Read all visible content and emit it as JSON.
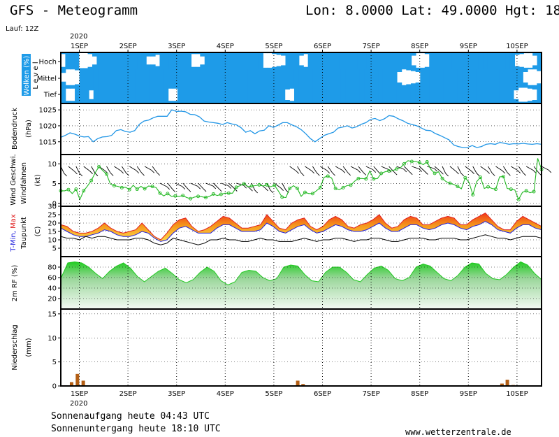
{
  "header": {
    "title": "GFS - Meteogramm",
    "coords": "Lon: 8.0000 Lat: 49.0000 Hgt: 18",
    "lauf": "Lauf: 12Z"
  },
  "axis": {
    "year_top": "2020",
    "year_bottom": "2020",
    "days": [
      "1SEP",
      "2SEP",
      "3SEP",
      "4SEP",
      "5SEP",
      "6SEP",
      "7SEP",
      "8SEP",
      "9SEP",
      "10SEP"
    ]
  },
  "footer": {
    "sunrise": "Sonnenaufgang heute 04:43 UTC",
    "sunset": "Sonnenuntergang heute 18:10 UTC",
    "site": "www.wetterzentrale.de"
  },
  "colors": {
    "sky": "#1e9be8",
    "pressure": "#2196e6",
    "wind": "#22b822",
    "tdew": "#000000",
    "tmin": "#2222dd",
    "tmax": "#e02020",
    "rh": "#22c822",
    "precip_rain": "#b35e14"
  },
  "chart_data": [
    {
      "type": "heatmap",
      "panel": "clouds",
      "ylabel": "Wolken (%)",
      "ylabel2": "L e v e l",
      "levels": [
        "Hoch",
        "Mittel",
        "Tief"
      ],
      "clouds_high_pct": [
        80,
        20,
        20,
        40,
        95,
        95,
        80,
        50,
        20,
        10,
        10,
        10,
        10,
        10,
        10,
        10,
        10,
        10,
        20,
        50,
        50,
        70,
        40,
        10,
        10,
        10,
        10,
        10,
        40,
        80,
        80,
        50,
        20,
        10,
        10,
        10,
        10,
        10,
        10,
        10,
        10,
        10,
        10,
        10,
        30,
        90,
        90,
        80,
        70,
        60,
        20,
        10,
        10,
        60,
        80,
        40,
        10,
        20,
        10,
        10,
        10,
        10,
        10,
        10,
        10,
        10,
        10,
        10,
        10,
        10,
        10,
        10,
        10,
        10,
        10,
        10,
        10,
        20,
        60,
        90,
        90,
        80,
        40,
        10,
        10,
        10,
        10,
        10,
        10,
        10,
        10,
        10,
        10,
        10,
        10,
        10,
        10,
        10,
        10,
        10,
        20,
        70,
        80,
        90,
        90,
        60,
        20
      ],
      "clouds_mid_pct": [
        50,
        90,
        90,
        80,
        40,
        20,
        10,
        10,
        10,
        10,
        30,
        10,
        10,
        10,
        10,
        10,
        10,
        10,
        10,
        10,
        10,
        10,
        10,
        10,
        10,
        10,
        10,
        10,
        10,
        10,
        10,
        10,
        10,
        10,
        10,
        10,
        10,
        10,
        10,
        10,
        10,
        10,
        10,
        10,
        20,
        40,
        20,
        10,
        10,
        10,
        10,
        10,
        10,
        10,
        10,
        10,
        10,
        10,
        10,
        10,
        10,
        10,
        10,
        10,
        10,
        10,
        10,
        10,
        10,
        10,
        10,
        10,
        60,
        90,
        80,
        70,
        60,
        20,
        10,
        10,
        10,
        10,
        10,
        10,
        10,
        10,
        10,
        10,
        10,
        10,
        10,
        10,
        10,
        10,
        10,
        10,
        10,
        10,
        20,
        60,
        90,
        90,
        70
      ],
      "clouds_low_pct": [
        20,
        70,
        70,
        30,
        10,
        40,
        50,
        10,
        10,
        10,
        10,
        10,
        10,
        10,
        10,
        10,
        10,
        10,
        10,
        10,
        10,
        10,
        10,
        70,
        70,
        10,
        10,
        10,
        10,
        10,
        10,
        10,
        10,
        10,
        10,
        10,
        10,
        10,
        10,
        10,
        10,
        10,
        10,
        10,
        10,
        10,
        10,
        10,
        60,
        70,
        40,
        10,
        10,
        10,
        10,
        10,
        10,
        10,
        10,
        10,
        10,
        10,
        10,
        10,
        10,
        10,
        10,
        10,
        10,
        10,
        10,
        10,
        10,
        10,
        10,
        10,
        10,
        10,
        10,
        10,
        10,
        10,
        10,
        10,
        10,
        10,
        10,
        10,
        10,
        10,
        10,
        10,
        10,
        10,
        10,
        10,
        10,
        50,
        80,
        80,
        70,
        60,
        40
      ]
    },
    {
      "type": "line",
      "panel": "pressure",
      "ylabel": "Bodendruck",
      "ylabel2": "(hPa)",
      "ylim": [
        1011,
        1027
      ],
      "yticks": [
        1015,
        1020,
        1025
      ],
      "pressure_hpa": [
        1016.4,
        1017,
        1017.8,
        1017.4,
        1016.8,
        1016.5,
        1016.6,
        1015,
        1016,
        1016.5,
        1016.6,
        1017,
        1018.5,
        1018.8,
        1018.2,
        1018,
        1018.5,
        1020.5,
        1021.5,
        1021.8,
        1022.5,
        1023,
        1023,
        1023,
        1025,
        1024.5,
        1024.6,
        1024.4,
        1023.6,
        1023.5,
        1022.8,
        1021.5,
        1021.2,
        1021,
        1020.8,
        1020.4,
        1021,
        1020.6,
        1020.3,
        1019.4,
        1018,
        1018.5,
        1017.5,
        1018.4,
        1018.6,
        1020,
        1019.5,
        1020.2,
        1021,
        1021,
        1020.3,
        1019.7,
        1018.8,
        1017.5,
        1016,
        1015,
        1016,
        1017,
        1017.5,
        1018,
        1019.3,
        1019.6,
        1020,
        1019.3,
        1019.7,
        1020.5,
        1021,
        1022,
        1022.3,
        1021.6,
        1022.2,
        1023.2,
        1023,
        1022.2,
        1021.6,
        1020.8,
        1020.4,
        1020,
        1019.3,
        1018.6,
        1018.5,
        1017.6,
        1017,
        1016.3,
        1015.6,
        1014,
        1013.5,
        1013.2,
        1013.2,
        1013.8,
        1013.2,
        1013.5,
        1014.2,
        1014.4,
        1014.2,
        1014.8,
        1014.5,
        1014.2,
        1014.4,
        1014.3,
        1014.5,
        1014.3,
        1014.2,
        1014.4,
        1014.2
      ]
    },
    {
      "type": "line",
      "panel": "wind",
      "ylabel": "Wind Geschwi.",
      "ylabel2": "Windfahnen",
      "ylabel3": "(kt)",
      "ylim": [
        0,
        12
      ],
      "yticks": [
        0,
        5,
        10
      ],
      "wind_kt": [
        3.2,
        3.2,
        3.5,
        2.5,
        3.6,
        1,
        3.2,
        4.4,
        5.8,
        7.7,
        9.3,
        8.3,
        7.4,
        4.9,
        4.5,
        4.3,
        4,
        4.1,
        3.5,
        4.6,
        3.6,
        4.3,
        3.7,
        4.4,
        4.3,
        4,
        2.6,
        1.9,
        2.5,
        1.8,
        1.9,
        1.8,
        2,
        1.5,
        1.2,
        1.6,
        1.8,
        1.7,
        1.5,
        1.8,
        2.4,
        2,
        2.3,
        2.6,
        2.6,
        2.6,
        4.1,
        4.5,
        5,
        4.2,
        4.4,
        4.5,
        4.7,
        4.4,
        4.7,
        4.2,
        4.6,
        3.2,
        1.6,
        1.5,
        3.8,
        4.5,
        3.8,
        1.8,
        2.8,
        2.5,
        2.5,
        3.2,
        4,
        6.6,
        6.9,
        6.4,
        3.8,
        3.5,
        4,
        4.5,
        4.6,
        5.6,
        6.3,
        6.3,
        6.2,
        8.2,
        6.2,
        6.3,
        7.6,
        8,
        8.2,
        8.3,
        8.7,
        9,
        10,
        10.8,
        10.6,
        10.6,
        10.3,
        9.8,
        10.5,
        8.6,
        7.6,
        8,
        6.3,
        5.5,
        5.1,
        4.8,
        4.3,
        3.7,
        6.5,
        5.3,
        2.2,
        5.5,
        6.6,
        3.8,
        4.2,
        3.8,
        3.6,
        6.7,
        6.8,
        3.8,
        3.6,
        3.4,
        1,
        2.8,
        3.2,
        2.7,
        3,
        11.4,
        8.6
      ]
    },
    {
      "type": "area",
      "panel": "temperature",
      "ylabel": "T-Min, Max",
      "ylabel2": "Taupunkt",
      "ylabel3": "(C)",
      "ylim": [
        0,
        30
      ],
      "yticks": [
        5,
        10,
        15,
        20,
        25,
        30
      ],
      "series": [
        {
          "name": "T-Max",
          "values": [
            19,
            18,
            15,
            14,
            14,
            15,
            17,
            20,
            17,
            15,
            14,
            15,
            16,
            20,
            16,
            12,
            10,
            14,
            19,
            22,
            23,
            18,
            15,
            16,
            18,
            21,
            24,
            23,
            20,
            17,
            17,
            18,
            19,
            25,
            21,
            17,
            16,
            20,
            22,
            23,
            18,
            16,
            18,
            22,
            24,
            22,
            18,
            17,
            19,
            20,
            22,
            25,
            20,
            17,
            18,
            22,
            24,
            23,
            19,
            19,
            21,
            23,
            24,
            23,
            19,
            19,
            22,
            24,
            26,
            22,
            18,
            16,
            16,
            21,
            24,
            22,
            20,
            18
          ]
        },
        {
          "name": "T-Min",
          "values": [
            17,
            15,
            13,
            12,
            12,
            13,
            14,
            16,
            15,
            13,
            12,
            12,
            13,
            15,
            14,
            11,
            9,
            10,
            14,
            17,
            18,
            16,
            14,
            14,
            14,
            17,
            19,
            19,
            17,
            15,
            15,
            15,
            16,
            20,
            18,
            15,
            14,
            16,
            18,
            19,
            16,
            14,
            15,
            17,
            19,
            18,
            16,
            15,
            15,
            16,
            18,
            20,
            17,
            15,
            15,
            17,
            19,
            19,
            17,
            16,
            17,
            19,
            20,
            19,
            17,
            16,
            18,
            19,
            21,
            19,
            16,
            15,
            14,
            17,
            19,
            19,
            17,
            16
          ]
        },
        {
          "name": "Taupunkt",
          "values": [
            12,
            11,
            11,
            10,
            12,
            11,
            12,
            12,
            11,
            10,
            10,
            10,
            11,
            11,
            10,
            8,
            7,
            8,
            11,
            10,
            9,
            8,
            7,
            8,
            10,
            10,
            11,
            10,
            10,
            9,
            9,
            10,
            11,
            10,
            10,
            9,
            9,
            9,
            10,
            11,
            10,
            9,
            10,
            10,
            11,
            11,
            10,
            9,
            10,
            10,
            11,
            11,
            10,
            9,
            9,
            10,
            11,
            11,
            11,
            10,
            10,
            11,
            11,
            11,
            10,
            10,
            11,
            12,
            13,
            12,
            11,
            11,
            10,
            11,
            12,
            12,
            12,
            11
          ]
        }
      ]
    },
    {
      "type": "area",
      "panel": "humidity",
      "ylabel": "2m RF (%)",
      "ylim": [
        0,
        100
      ],
      "yticks": [
        20,
        40,
        60,
        80
      ],
      "rh_pct": [
        58,
        88,
        90,
        88,
        80,
        68,
        58,
        72,
        82,
        88,
        78,
        62,
        52,
        62,
        72,
        78,
        68,
        56,
        50,
        56,
        70,
        80,
        72,
        54,
        46,
        52,
        70,
        74,
        72,
        60,
        54,
        58,
        80,
        84,
        82,
        66,
        54,
        52,
        70,
        80,
        80,
        70,
        56,
        52,
        66,
        78,
        82,
        74,
        58,
        54,
        60,
        80,
        86,
        82,
        70,
        58,
        54,
        64,
        80,
        88,
        86,
        68,
        58,
        56,
        66,
        80,
        90,
        84,
        68,
        56
      ]
    },
    {
      "type": "bar",
      "panel": "precipitation",
      "ylabel": "Niederschlag",
      "ylabel2": "(mm)",
      "ylim": [
        0,
        16
      ],
      "yticks": [
        0,
        5,
        10,
        15
      ],
      "precip_mm": [
        {
          "x": 0.1,
          "mm": 0.8
        },
        {
          "x": 0.22,
          "mm": 2.5
        },
        {
          "x": 0.34,
          "mm": 1.1
        },
        {
          "x": 4.75,
          "mm": 1.1
        },
        {
          "x": 4.86,
          "mm": 0.4
        },
        {
          "x": 8.95,
          "mm": 0.5
        },
        {
          "x": 9.06,
          "mm": 1.3
        },
        {
          "x": 9.18,
          "mm": 0.2
        }
      ]
    }
  ]
}
